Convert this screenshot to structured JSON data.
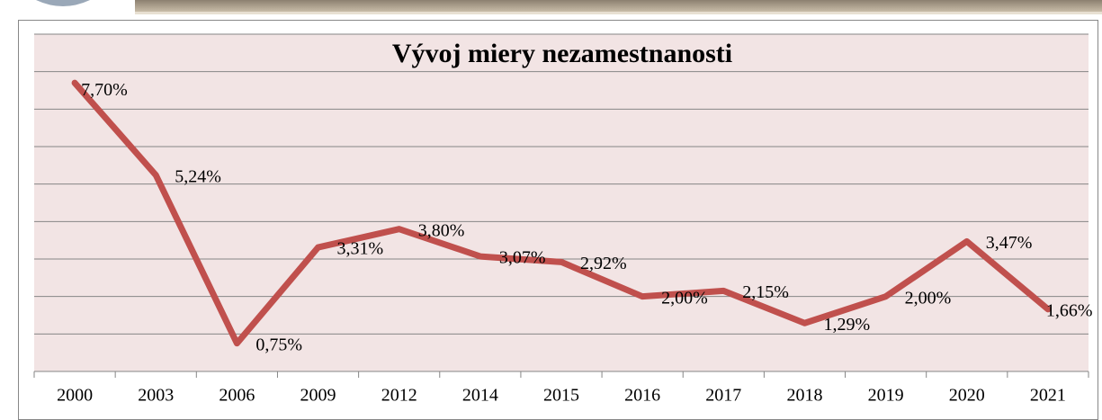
{
  "chart_data": {
    "type": "line",
    "title": "Vývoj miery nezamestnanosti",
    "categories": [
      "2000",
      "2003",
      "2006",
      "2009",
      "2012",
      "2014",
      "2015",
      "2016",
      "2017",
      "2018",
      "2019",
      "2020",
      "2021"
    ],
    "series": [
      {
        "color": "#c0504d",
        "values": [
          7.7,
          5.24,
          0.75,
          3.31,
          3.8,
          3.07,
          2.92,
          2.0,
          2.15,
          1.29,
          2.0,
          3.47,
          1.66
        ],
        "value_labels": [
          "7,70%",
          "5,24%",
          "0,75%",
          "3,31%",
          "3,80%",
          "3,07%",
          "2,92%",
          "2,00%",
          "2,15%",
          "1,29%",
          "2,00%",
          "3,47%",
          "1,66%"
        ]
      }
    ],
    "ylim": [
      0,
      9
    ],
    "yticks": [
      0,
      1,
      2,
      3,
      4,
      5,
      6,
      7,
      8,
      9
    ],
    "grid": true
  }
}
